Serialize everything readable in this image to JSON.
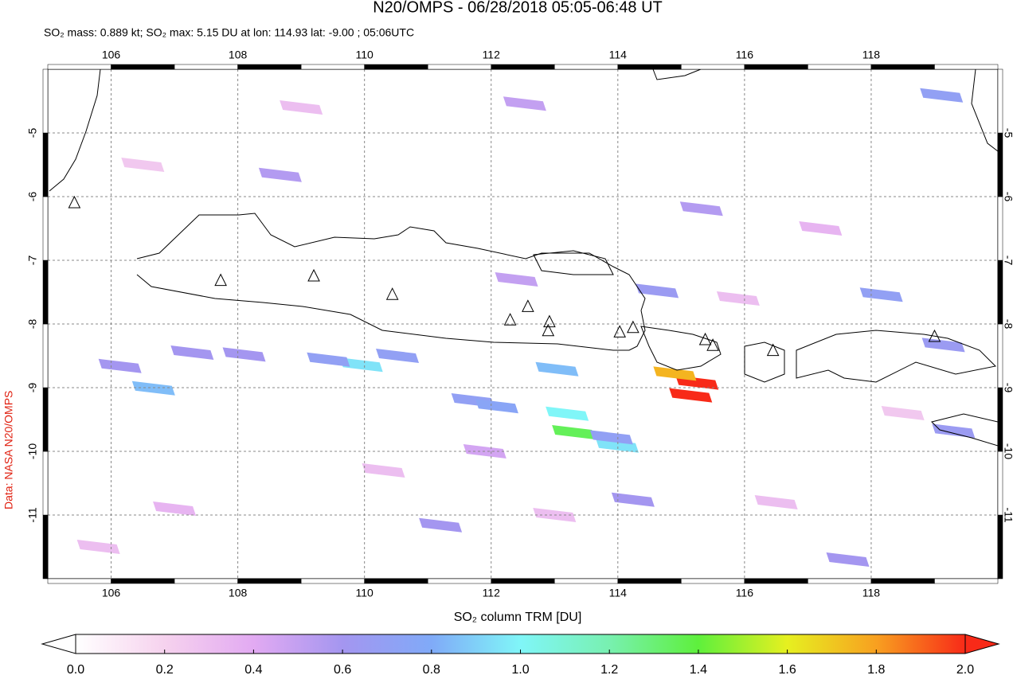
{
  "chart_data": {
    "type": "map",
    "title": "N20/OMPS - 06/28/2018 05:05-06:48 UT",
    "subtitle": "SO₂ mass: 0.889 kt; SO₂ max: 5.15 DU at lon: 114.93 lat: -9.00 ; 05:06UTC",
    "side_note": "Data: NASA N20/OMPS",
    "colorbar_label": "SO₂ column TRM [DU]",
    "xlim": [
      105,
      120
    ],
    "ylim": [
      -12,
      -4
    ],
    "xticks": [
      106,
      108,
      110,
      112,
      114,
      116,
      118
    ],
    "yticks": [
      -5,
      -6,
      -7,
      -8,
      -9,
      -10,
      -11
    ],
    "grid": true,
    "colorbar_lim": [
      0,
      2
    ],
    "colorbar_ticks": [
      {
        "value": 0,
        "label": "0.0"
      },
      0.2,
      0.4,
      0.6,
      0.8,
      {
        "value": 1,
        "label": "1.0"
      },
      1.2,
      1.4,
      1.6,
      1.8,
      {
        "value": 2,
        "label": "2.0"
      }
    ],
    "colormap": [
      {
        "value": 0,
        "color": "#ffffff"
      },
      {
        "value": 0.2,
        "color": "#f6d2ee"
      },
      {
        "value": 0.4,
        "color": "#e2aaf2"
      },
      {
        "value": 0.6,
        "color": "#a496f0"
      },
      {
        "value": 0.8,
        "color": "#80aaf8"
      },
      {
        "value": 1,
        "color": "#80f6f8"
      },
      {
        "value": 1.2,
        "color": "#78f0b0"
      },
      {
        "value": 1.4,
        "color": "#5ef03c"
      },
      {
        "value": 1.6,
        "color": "#e6f020"
      },
      {
        "value": 1.8,
        "color": "#f8a020"
      },
      {
        "value": 2,
        "color": "#f82a18"
      }
    ],
    "pixels": {
      "lon": [
        115.25,
        115.15,
        114.9,
        113.3,
        113.2,
        113.99,
        113.04,
        109.95,
        106.67,
        109.43,
        110.52,
        111.71,
        112.09,
        113.9,
        114.24,
        114.62,
        118.16,
        119.14,
        119.11,
        119.3,
        117.63,
        108.67,
        106.14,
        112.53,
        111.2,
        108.1,
        115.32,
        107.28,
        111.9,
        112.4,
        107.0,
        110.3,
        116.5,
        117.2,
        106.5,
        109.0,
        113.0,
        115.9,
        118.5,
        105.8
      ],
      "lat": [
        -8.92,
        -9.12,
        -8.78,
        -9.7,
        -9.41,
        -9.91,
        -8.71,
        -8.64,
        -9.01,
        -8.56,
        -8.5,
        -9.2,
        -9.29,
        -9.78,
        -10.76,
        -7.48,
        -7.54,
        -8.33,
        -4.41,
        -9.68,
        -11.7,
        -5.66,
        -8.66,
        -4.54,
        -11.16,
        -8.48,
        -6.19,
        -8.45,
        -10.0,
        -7.3,
        -10.9,
        -10.3,
        -10.8,
        -6.5,
        -5.5,
        -4.6,
        -11.0,
        -7.6,
        -9.4,
        -11.5
      ],
      "values": [
        2.5,
        5.15,
        1.75,
        1.35,
        1.0,
        0.95,
        0.85,
        0.95,
        0.85,
        0.7,
        0.7,
        0.7,
        0.75,
        0.7,
        0.6,
        0.65,
        0.7,
        0.65,
        0.7,
        0.65,
        0.6,
        0.55,
        0.6,
        0.5,
        0.6,
        0.6,
        0.55,
        0.6,
        0.45,
        0.5,
        0.35,
        0.3,
        0.3,
        0.35,
        0.25,
        0.3,
        0.3,
        0.3,
        0.25,
        0.3
      ]
    },
    "volcanoes": {
      "lon": [
        105.42,
        107.73,
        109.2,
        110.44,
        112.3,
        112.58,
        112.92,
        112.9,
        114.03,
        114.24,
        115.38,
        115.5,
        116.45,
        119.0
      ],
      "lat": [
        -6.1,
        -7.32,
        -7.25,
        -7.54,
        -7.94,
        -7.73,
        -7.97,
        -8.11,
        -8.13,
        -8.06,
        -8.25,
        -8.34,
        -8.42,
        -8.2
      ]
    }
  }
}
